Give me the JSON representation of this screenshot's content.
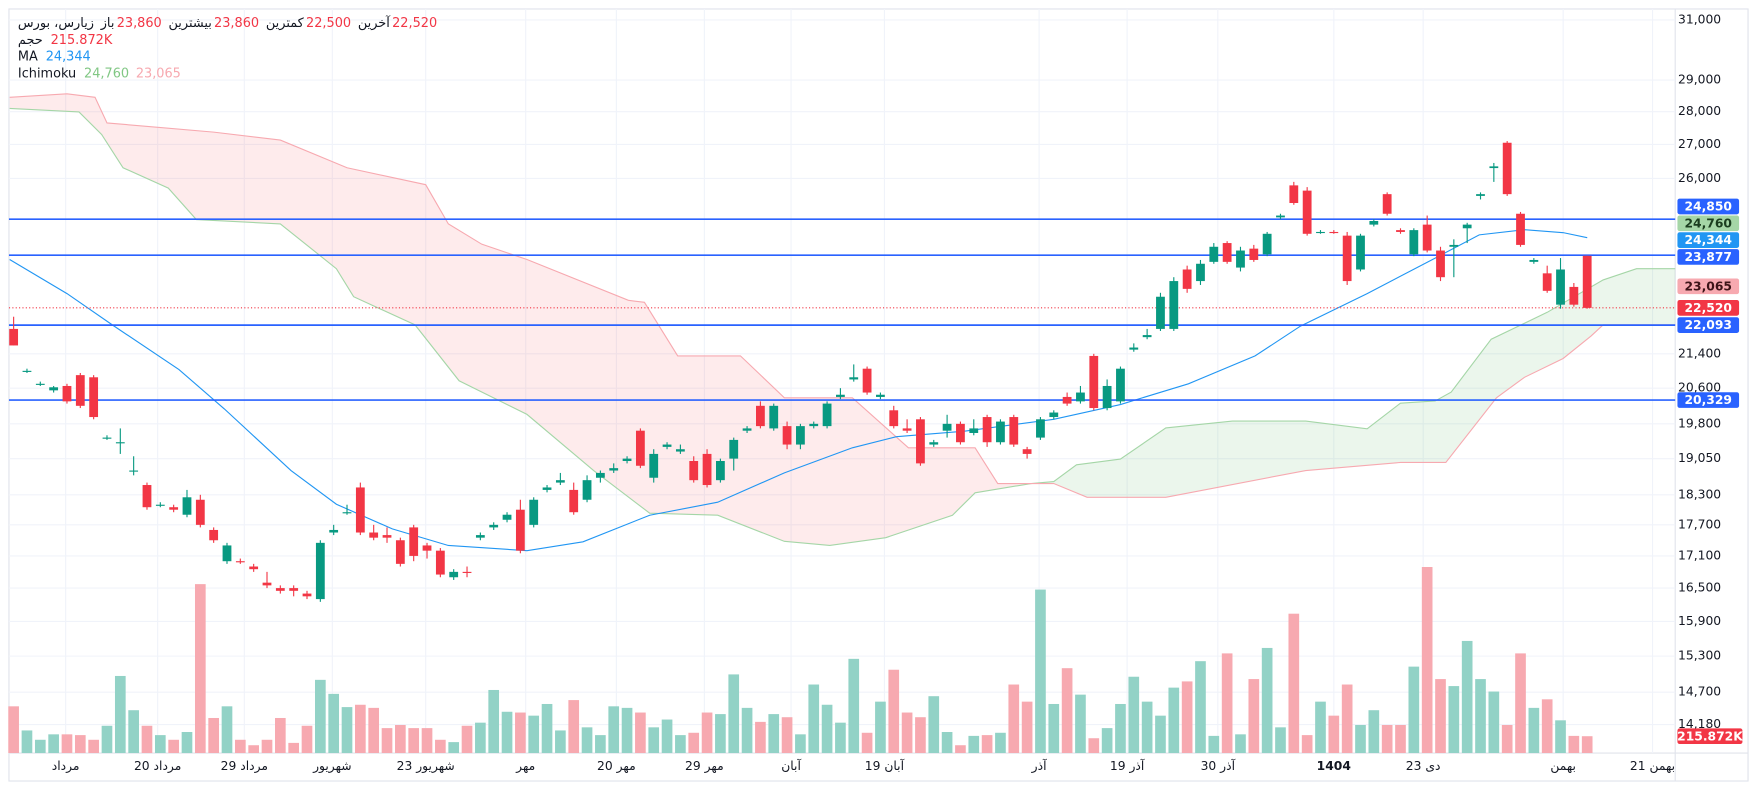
{
  "header": {
    "symbol": "زیارس، بورس",
    "fields": [
      {
        "label": "باز",
        "value": "23,860"
      },
      {
        "label": "بیشترین",
        "value": "23,860"
      },
      {
        "label": "کمترین",
        "value": "22,500"
      },
      {
        "label": "آخرین",
        "value": "22,520"
      }
    ],
    "value_color": "#f23645",
    "indicators": [
      {
        "name": "حجم",
        "values": [
          "215.872K"
        ],
        "colors": [
          "#f23645"
        ]
      },
      {
        "name": "MA",
        "values": [
          "24,344"
        ],
        "colors": [
          "#2196f3"
        ]
      },
      {
        "name": "Ichimoku",
        "values": [
          "24,760",
          "23,065"
        ],
        "colors": [
          "#81c784",
          "#f7a9b0"
        ]
      }
    ]
  },
  "chart_data": {
    "type": "candlestick",
    "ylog": true,
    "grid": true,
    "ylim": [
      13740,
      31380
    ],
    "yticks": [
      {
        "value": 31000,
        "label": "31,000"
      },
      {
        "value": 29000,
        "label": "29,000"
      },
      {
        "value": 28000,
        "label": "28,000"
      },
      {
        "value": 27000,
        "label": "27,000"
      },
      {
        "value": 26000,
        "label": "26,000"
      },
      {
        "value": 21400,
        "label": "21,400"
      },
      {
        "value": 20600,
        "label": "20,600"
      },
      {
        "value": 19800,
        "label": "19,800"
      },
      {
        "value": 19050,
        "label": "19,050"
      },
      {
        "value": 18300,
        "label": "18,300"
      },
      {
        "value": 17700,
        "label": "17,700"
      },
      {
        "value": 17100,
        "label": "17,100"
      },
      {
        "value": 16500,
        "label": "16,500"
      },
      {
        "value": 15900,
        "label": "15,900"
      },
      {
        "value": 15300,
        "label": "15,300"
      },
      {
        "value": 14700,
        "label": "14,700"
      },
      {
        "value": 14180,
        "label": "14,180"
      }
    ],
    "xlim": [
      -0.35,
      124.6
    ],
    "xticks": [
      {
        "value": 3.9,
        "label": "مرداد"
      },
      {
        "value": 10.8,
        "label": "20 مرداد"
      },
      {
        "value": 17.3,
        "label": "29 مرداد"
      },
      {
        "value": 23.9,
        "label": "شهریور"
      },
      {
        "value": 30.9,
        "label": "23 شهریور"
      },
      {
        "value": 38.4,
        "label": "مهر"
      },
      {
        "value": 45.2,
        "label": "20 مهر"
      },
      {
        "value": 51.8,
        "label": "29 مهر"
      },
      {
        "value": 58.3,
        "label": "آبان"
      },
      {
        "value": 65.3,
        "label": "19 آبان"
      },
      {
        "value": 76.9,
        "label": "آذر"
      },
      {
        "value": 83.5,
        "label": "19 آذر"
      },
      {
        "value": 90.3,
        "label": "30 آذر"
      },
      {
        "value": 99.0,
        "label": "1404",
        "bold": true
      },
      {
        "value": 105.7,
        "label": "23 دی"
      },
      {
        "value": 116.2,
        "label": "بهمن"
      },
      {
        "value": 122.9,
        "label": "21 بهمن"
      }
    ],
    "up_color": "#089981",
    "down_color": "#f23645",
    "up_volume_color": "#92d2c6",
    "down_volume_color": "#f7a9b0",
    "candles": [
      [
        22000,
        22300,
        21600,
        21600
      ],
      [
        21000,
        21050,
        20950,
        21000
      ],
      [
        20700,
        20750,
        20650,
        20700
      ],
      [
        20550,
        20650,
        20500,
        20620
      ],
      [
        20650,
        20700,
        20250,
        20300
      ],
      [
        20900,
        20950,
        20150,
        20200
      ],
      [
        20850,
        20900,
        19900,
        19950
      ],
      [
        19500,
        19550,
        19450,
        19500
      ],
      [
        19400,
        19700,
        19150,
        19400
      ],
      [
        18800,
        19100,
        18700,
        18800
      ],
      [
        18500,
        18550,
        18000,
        18050
      ],
      [
        18100,
        18150,
        18050,
        18100
      ],
      [
        18050,
        18100,
        17950,
        18000
      ],
      [
        17900,
        18400,
        17850,
        18250
      ],
      [
        18200,
        18300,
        17650,
        17700
      ],
      [
        17600,
        17650,
        17350,
        17400
      ],
      [
        17000,
        17350,
        16950,
        17300
      ],
      [
        17000,
        17050,
        16950,
        16980
      ],
      [
        16900,
        16950,
        16800,
        16850
      ],
      [
        16600,
        16800,
        16500,
        16550
      ],
      [
        16500,
        16550,
        16400,
        16450
      ],
      [
        16500,
        16550,
        16350,
        16450
      ],
      [
        16400,
        16450,
        16300,
        16350
      ],
      [
        16300,
        17400,
        16250,
        17350
      ],
      [
        17550,
        17700,
        17500,
        17600
      ],
      [
        17950,
        18100,
        17900,
        17950
      ],
      [
        18450,
        18550,
        17500,
        17550
      ],
      [
        17550,
        17700,
        17400,
        17450
      ],
      [
        17500,
        17650,
        17350,
        17450
      ],
      [
        17400,
        17450,
        16900,
        16950
      ],
      [
        17650,
        17700,
        17000,
        17100
      ],
      [
        17300,
        17350,
        17050,
        17200
      ],
      [
        17200,
        17250,
        16700,
        16750
      ],
      [
        16700,
        16850,
        16650,
        16800
      ],
      [
        16800,
        16900,
        16700,
        16780
      ],
      [
        17450,
        17550,
        17400,
        17500
      ],
      [
        17650,
        17750,
        17600,
        17700
      ],
      [
        17800,
        17950,
        17750,
        17900
      ],
      [
        18000,
        18200,
        17150,
        17200
      ],
      [
        17700,
        18250,
        17650,
        18200
      ],
      [
        18400,
        18500,
        18350,
        18450
      ],
      [
        18550,
        18750,
        18500,
        18600
      ],
      [
        18400,
        18550,
        17900,
        17950
      ],
      [
        18200,
        18700,
        18150,
        18600
      ],
      [
        18650,
        18800,
        18550,
        18750
      ],
      [
        18800,
        18950,
        18750,
        18850
      ],
      [
        19000,
        19100,
        18950,
        19050
      ],
      [
        19650,
        19700,
        18850,
        18900
      ],
      [
        18650,
        19250,
        18550,
        19150
      ],
      [
        19300,
        19400,
        19250,
        19350
      ],
      [
        19200,
        19350,
        19150,
        19250
      ],
      [
        19000,
        19100,
        18550,
        18600
      ],
      [
        19150,
        19250,
        18450,
        18500
      ],
      [
        18600,
        19050,
        18550,
        19000
      ],
      [
        19050,
        19500,
        18800,
        19450
      ],
      [
        19650,
        19750,
        19600,
        19700
      ],
      [
        20200,
        20300,
        19700,
        19750
      ],
      [
        19700,
        20250,
        19650,
        20200
      ],
      [
        19750,
        19850,
        19250,
        19350
      ],
      [
        19350,
        19800,
        19250,
        19750
      ],
      [
        19750,
        19850,
        19700,
        19800
      ],
      [
        19750,
        20300,
        19700,
        20250
      ],
      [
        20400,
        20600,
        20350,
        20450
      ],
      [
        20800,
        21150,
        20750,
        20850
      ],
      [
        21050,
        21100,
        20450,
        20500
      ],
      [
        20400,
        20500,
        20350,
        20450
      ],
      [
        20100,
        20200,
        19700,
        19750
      ],
      [
        19700,
        19900,
        19600,
        19650
      ],
      [
        19900,
        19950,
        18900,
        18950
      ],
      [
        19350,
        19450,
        19300,
        19400
      ],
      [
        19650,
        20000,
        19500,
        19800
      ],
      [
        19800,
        19850,
        19350,
        19400
      ],
      [
        19600,
        19900,
        19550,
        19700
      ],
      [
        19950,
        20000,
        19300,
        19400
      ],
      [
        19400,
        19900,
        19350,
        19850
      ],
      [
        19950,
        20000,
        19300,
        19350
      ],
      [
        19250,
        19300,
        19050,
        19150
      ],
      [
        19500,
        19950,
        19450,
        19900
      ],
      [
        19950,
        20100,
        19900,
        20050
      ],
      [
        20400,
        20500,
        20200,
        20250
      ],
      [
        20300,
        20650,
        20250,
        20500
      ],
      [
        21350,
        21400,
        20100,
        20150
      ],
      [
        20150,
        20800,
        20100,
        20650
      ],
      [
        20300,
        21100,
        20250,
        21050
      ],
      [
        21500,
        21650,
        21450,
        21550
      ],
      [
        21800,
        22000,
        21750,
        21850
      ],
      [
        22000,
        22900,
        21950,
        22800
      ],
      [
        22000,
        23300,
        21950,
        23200
      ],
      [
        23500,
        23600,
        22900,
        23000
      ],
      [
        23200,
        23750,
        23100,
        23650
      ],
      [
        23700,
        24200,
        23650,
        24100
      ],
      [
        24200,
        24250,
        23650,
        23700
      ],
      [
        23550,
        24100,
        23450,
        24000
      ],
      [
        24050,
        24150,
        23700,
        23750
      ],
      [
        23900,
        24500,
        23850,
        24450
      ],
      [
        24900,
        25000,
        24850,
        24950
      ],
      [
        25800,
        25900,
        25250,
        25300
      ],
      [
        25650,
        25750,
        24400,
        24450
      ],
      [
        24500,
        24550,
        24450,
        24500
      ],
      [
        24500,
        24550,
        24450,
        24480
      ],
      [
        24400,
        24500,
        23100,
        23200
      ],
      [
        23500,
        24450,
        23450,
        24400
      ],
      [
        24700,
        24850,
        24650,
        24800
      ],
      [
        25550,
        25600,
        24950,
        25000
      ],
      [
        24550,
        24600,
        24450,
        24500
      ],
      [
        23900,
        24600,
        23850,
        24550
      ],
      [
        24700,
        24950,
        23950,
        24000
      ],
      [
        24000,
        24100,
        23200,
        23300
      ],
      [
        24100,
        24300,
        23300,
        24150
      ],
      [
        24600,
        24750,
        24200,
        24700
      ],
      [
        25500,
        25600,
        25400,
        25550
      ],
      [
        26300,
        26450,
        25900,
        26350
      ],
      [
        27050,
        27100,
        25500,
        25550
      ],
      [
        25000,
        25050,
        24100,
        24150
      ],
      [
        23700,
        23800,
        23650,
        23750
      ],
      [
        23400,
        23600,
        22900,
        22950
      ],
      [
        22600,
        23800,
        22500,
        23500
      ],
      [
        23050,
        23150,
        22550,
        22600
      ],
      [
        23860,
        23860,
        22500,
        22520
      ]
    ],
    "volume": {
      "values": [
        600,
        290,
        170,
        240,
        240,
        230,
        170,
        350,
        990,
        550,
        350,
        230,
        170,
        270,
        2170,
        450,
        600,
        170,
        100,
        170,
        450,
        130,
        350,
        940,
        760,
        590,
        620,
        580,
        320,
        360,
        320,
        320,
        170,
        140,
        350,
        390,
        810,
        530,
        520,
        480,
        630,
        290,
        680,
        330,
        230,
        600,
        580,
        520,
        330,
        430,
        230,
        260,
        520,
        500,
        1010,
        580,
        400,
        500,
        460,
        240,
        880,
        620,
        390,
        1210,
        260,
        660,
        1070,
        520,
        460,
        730,
        270,
        100,
        220,
        230,
        260,
        880,
        660,
        2100,
        630,
        1090,
        750,
        190,
        320,
        630,
        980,
        660,
        480,
        840,
        920,
        1180,
        220,
        1280,
        240,
        950,
        1350,
        330,
        1790,
        230,
        660,
        480,
        880,
        360,
        550,
        360,
        360,
        1110,
        2390,
        950,
        860,
        1440,
        950,
        790,
        360,
        1280,
        580,
        690,
        420,
        220,
        215.872
      ],
      "badge": {
        "value": 215.872,
        "label": "215.872K",
        "color": "#f23645"
      }
    },
    "ma": {
      "color": "#2196f3",
      "x": [
        -0.3,
        4.0,
        7.4,
        12.4,
        15.8,
        20.8,
        24.2,
        28.4,
        32.6,
        38.5,
        42.7,
        47.7,
        52.8,
        57.8,
        62.9,
        66.2,
        71.3,
        78.0,
        83.0,
        88.1,
        93.1,
        96.5,
        101.5,
        106.6,
        109.9,
        113.3,
        116.2,
        118
      ],
      "values": [
        23760,
        22880,
        22100,
        21030,
        20130,
        18800,
        18110,
        17620,
        17300,
        17200,
        17370,
        17890,
        18150,
        18750,
        19280,
        19520,
        19640,
        19900,
        20230,
        20700,
        21350,
        22070,
        22880,
        23800,
        24420,
        24560,
        24480,
        24344
      ]
    },
    "ichimoku": {
      "up_fill": "rgba(76,175,80,0.11)",
      "down_fill": "rgba(242,54,69,0.1)",
      "span_a": {
        "color": "#a5d6a7",
        "x": [
          -0.3,
          4.9,
          6.6,
          8.2,
          11.6,
          13.7,
          20.0,
          24.2,
          25.5,
          30.1,
          33.4,
          38.5,
          43.5,
          47.7,
          52.8,
          57.8,
          61.2,
          65.4,
          70.4,
          72.1,
          76.3,
          78.0,
          79.7,
          83.0,
          86.4,
          91.4,
          96.9,
          101.5,
          104.0,
          106.6,
          107.8,
          110.8,
          115.0,
          119.2,
          121.7,
          124.6
        ],
        "values": [
          28100,
          27990,
          27300,
          26310,
          25720,
          24840,
          24720,
          23520,
          22800,
          22100,
          20770,
          20010,
          18800,
          17930,
          17890,
          17380,
          17300,
          17450,
          17890,
          18340,
          18530,
          18570,
          18920,
          19040,
          19710,
          19860,
          19860,
          19690,
          20260,
          20310,
          20510,
          21750,
          22410,
          23230,
          23520,
          23520
        ]
      },
      "span_b": {
        "color": "#f7a9b0",
        "x": [
          -0.3,
          4.0,
          6.1,
          7.0,
          15.0,
          20.0,
          25.0,
          30.9,
          32.6,
          35.1,
          38.5,
          46.1,
          47.3,
          49.8,
          54.5,
          57.8,
          62.9,
          67.1,
          72.1,
          73.8,
          78.0,
          80.5,
          86.4,
          96.9,
          104.0,
          107.4,
          111.2,
          113.3,
          116.2,
          118.3,
          119.2,
          124.6
        ],
        "values": [
          28450,
          28560,
          28450,
          27650,
          27370,
          27130,
          26310,
          25820,
          24720,
          24170,
          23760,
          22710,
          22660,
          21350,
          21350,
          20380,
          20380,
          19280,
          19280,
          18530,
          18530,
          18250,
          18250,
          18800,
          18970,
          18970,
          20380,
          20850,
          21290,
          21830,
          22100,
          22100
        ]
      }
    },
    "price_badges": [
      {
        "value": 24850,
        "label": "24,850",
        "color": "#2962ff",
        "text_color": "#ffffff",
        "line": "solid"
      },
      {
        "value": 24760,
        "label": "24,760",
        "color": "#a5d6a7",
        "text_color": "#1b3d1f"
      },
      {
        "value": 24344,
        "label": "24,344",
        "color": "#2196f3",
        "text_color": "#ffffff"
      },
      {
        "value": 23877,
        "label": "23,877",
        "color": "#2962ff",
        "text_color": "#ffffff",
        "line": "solid"
      },
      {
        "value": 23065,
        "label": "23,065",
        "color": "#f7a9b0",
        "text_color": "#3d1418"
      },
      {
        "value": 22520,
        "label": "22,520",
        "color": "#f23645",
        "text_color": "#ffffff",
        "line": "dotted"
      },
      {
        "value": 22093,
        "label": "22,093",
        "color": "#2962ff",
        "text_color": "#ffffff",
        "line": "solid"
      },
      {
        "value": 20329,
        "label": "20,329",
        "color": "#2962ff",
        "text_color": "#ffffff",
        "line": "solid"
      }
    ]
  }
}
